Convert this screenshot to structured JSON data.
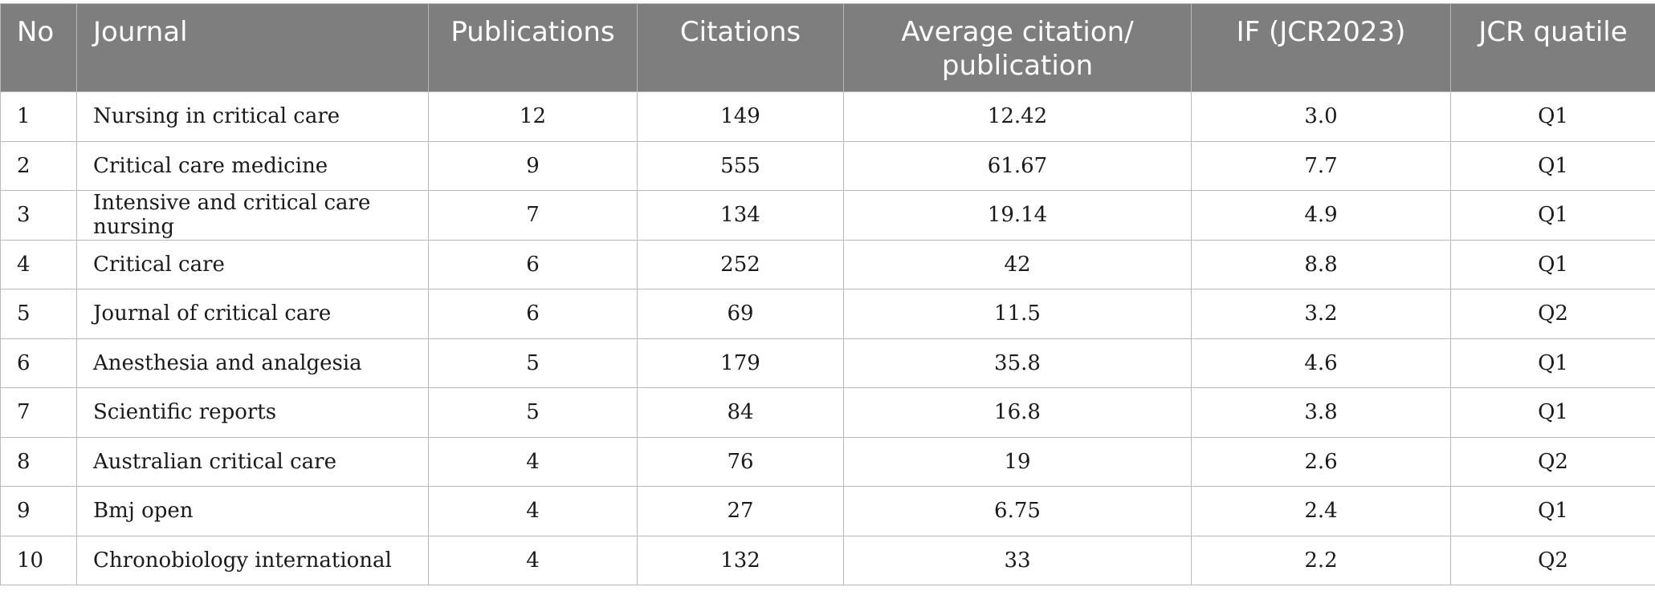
{
  "table": {
    "headers": {
      "no": "No",
      "journal": "Journal",
      "publications": "Publications",
      "citations": "Citations",
      "avg_citation": "Average citation/ publication",
      "if": "IF (JCR2023)",
      "jcr": "JCR quatile"
    },
    "rows": [
      {
        "no": "1",
        "journal": "Nursing in critical care",
        "publications": "12",
        "citations": "149",
        "avg": "12.42",
        "if": "3.0",
        "jcr": "Q1"
      },
      {
        "no": "2",
        "journal": "Critical care medicine",
        "publications": "9",
        "citations": "555",
        "avg": "61.67",
        "if": "7.7",
        "jcr": "Q1"
      },
      {
        "no": "3",
        "journal": "Intensive and critical care nursing",
        "publications": "7",
        "citations": "134",
        "avg": "19.14",
        "if": "4.9",
        "jcr": "Q1"
      },
      {
        "no": "4",
        "journal": "Critical care",
        "publications": "6",
        "citations": "252",
        "avg": "42",
        "if": "8.8",
        "jcr": "Q1"
      },
      {
        "no": "5",
        "journal": "Journal of critical care",
        "publications": "6",
        "citations": "69",
        "avg": "11.5",
        "if": "3.2",
        "jcr": "Q2"
      },
      {
        "no": "6",
        "journal": "Anesthesia and analgesia",
        "publications": "5",
        "citations": "179",
        "avg": "35.8",
        "if": "4.6",
        "jcr": "Q1"
      },
      {
        "no": "7",
        "journal": "Scientific reports",
        "publications": "5",
        "citations": "84",
        "avg": "16.8",
        "if": "3.8",
        "jcr": "Q1"
      },
      {
        "no": "8",
        "journal": "Australian critical care",
        "publications": "4",
        "citations": "76",
        "avg": "19",
        "if": "2.6",
        "jcr": "Q2"
      },
      {
        "no": "9",
        "journal": "Bmj open",
        "publications": "4",
        "citations": "27",
        "avg": "6.75",
        "if": "2.4",
        "jcr": "Q1"
      },
      {
        "no": "10",
        "journal": "Chronobiology international",
        "publications": "4",
        "citations": "132",
        "avg": "33",
        "if": "2.2",
        "jcr": "Q2"
      }
    ]
  }
}
